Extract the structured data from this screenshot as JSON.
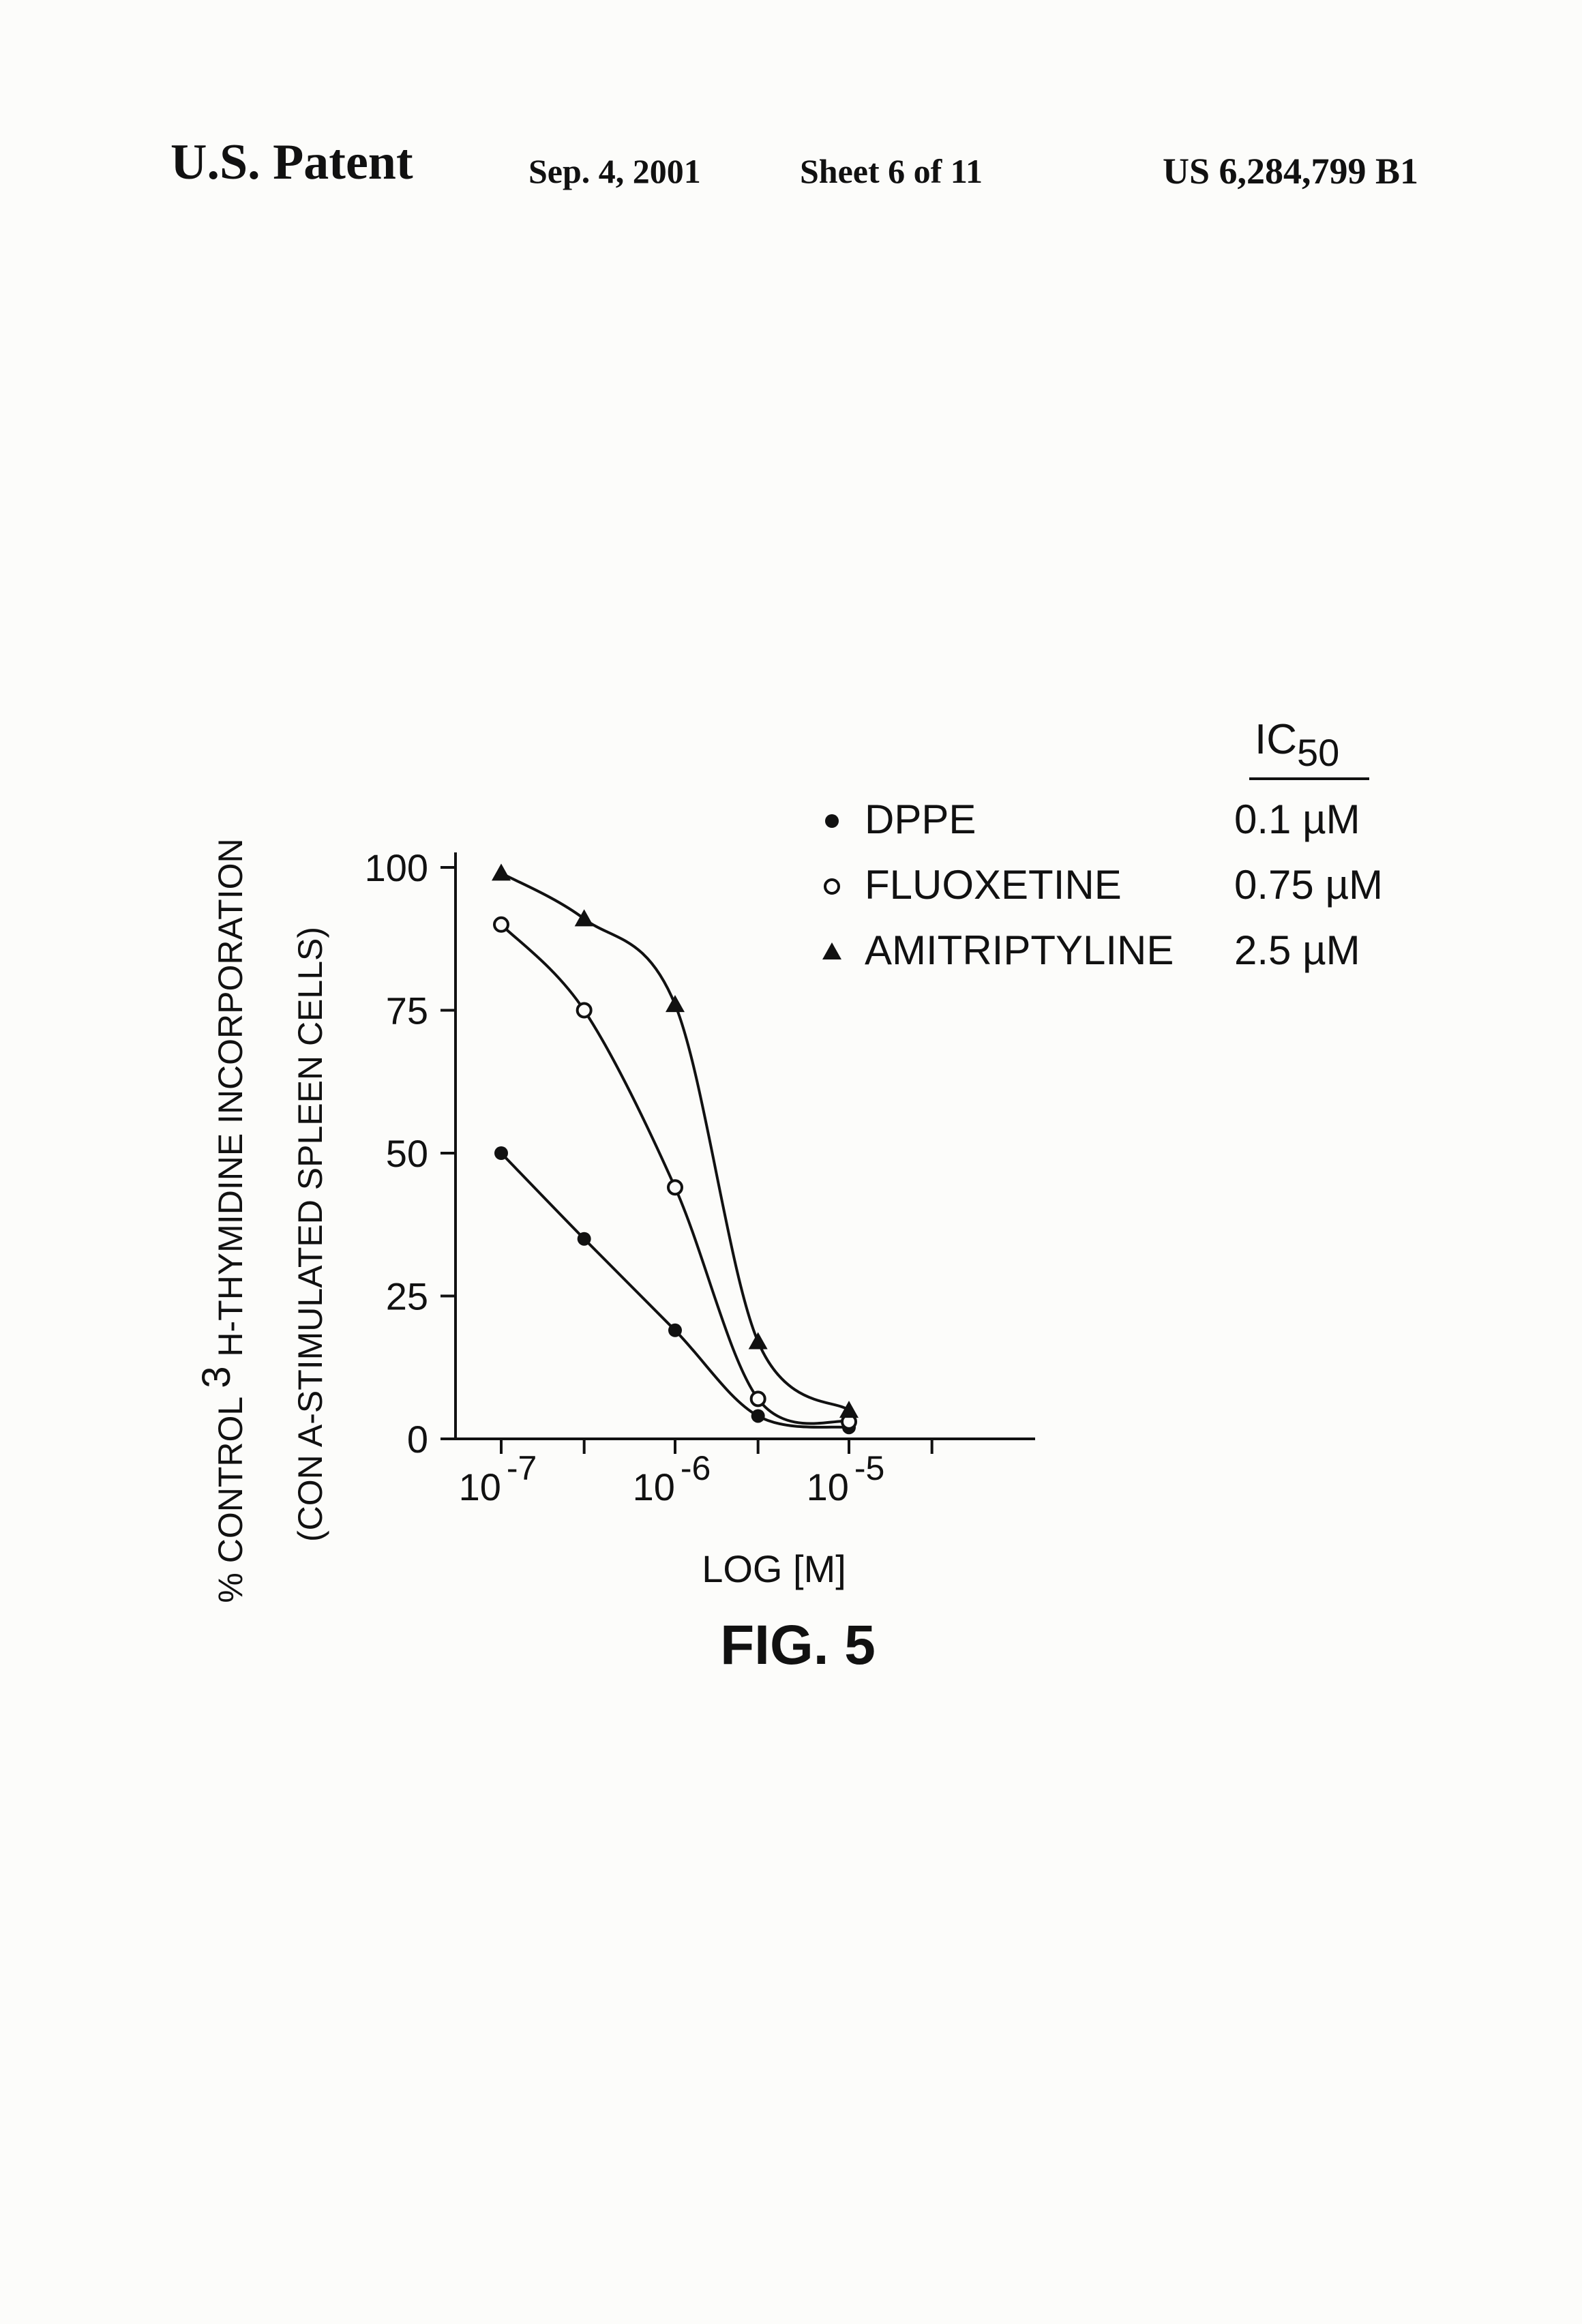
{
  "header": {
    "left": "U.S. Patent",
    "date": "Sep. 4, 2001",
    "sheet": "Sheet 6 of 11",
    "patent_number": "US 6,284,799 B1"
  },
  "figure_label": "FIG. 5",
  "chart_data": {
    "type": "line",
    "xlabel": "LOG [M]",
    "x_scale": "log",
    "xlim": [
      5e-08,
      0.0001
    ],
    "ylim": [
      0,
      100
    ],
    "ylabel_line1_prefix": "% CONTROL ",
    "ylabel_line1_sup": "3",
    "ylabel_line1_suffix": " H-THYMIDINE INCORPORATION",
    "ylabel_line2": "(CON A-STIMULATED SPLEEN CELLS)",
    "y_ticks": [
      0,
      25,
      50,
      75,
      100
    ],
    "x_tick_labels": [
      {
        "value": 1e-07,
        "base": "10",
        "exp": "-7"
      },
      {
        "value": 1e-06,
        "base": "10",
        "exp": "-6"
      },
      {
        "value": 1e-05,
        "base": "10",
        "exp": "-5"
      }
    ],
    "x_minor_ticks": [
      1e-07,
      3e-07,
      1e-06,
      3e-06,
      1e-05,
      3e-05
    ],
    "legend_title_base": "IC",
    "legend_title_sub": "50",
    "series": [
      {
        "name": "DPPE",
        "marker": "filled-circle",
        "ic50": "0.1 µM",
        "x": [
          1e-07,
          3e-07,
          1e-06,
          3e-06,
          1e-05
        ],
        "y": [
          50,
          35,
          19,
          4,
          2
        ]
      },
      {
        "name": "FLUOXETINE",
        "marker": "open-circle",
        "ic50": "0.75 µM",
        "x": [
          1e-07,
          3e-07,
          1e-06,
          3e-06,
          1e-05
        ],
        "y": [
          90,
          75,
          44,
          7,
          3
        ]
      },
      {
        "name": "AMITRIPTYLINE",
        "marker": "filled-triangle",
        "ic50": "2.5 µM",
        "x": [
          1e-07,
          3e-07,
          1e-06,
          3e-06,
          1e-05
        ],
        "y": [
          99,
          91,
          76,
          17,
          5
        ]
      }
    ]
  }
}
